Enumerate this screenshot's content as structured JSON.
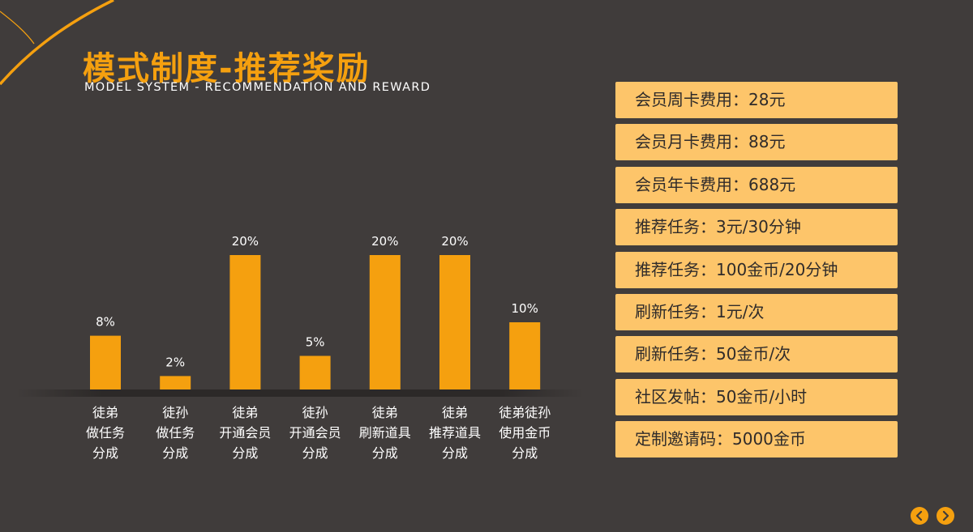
{
  "header": {
    "title": "模式制度-推荐奖励",
    "subtitle": "MODEL SYSTEM - RECOMMENDATION AND REWARD"
  },
  "colors": {
    "background": "#403c3b",
    "accent": "#f5a00f",
    "card": "#fdc56a",
    "card_text": "#2f2b2a"
  },
  "chart_data": {
    "type": "bar",
    "categories": [
      [
        "徒弟",
        "做任务",
        "分成"
      ],
      [
        "徒孙",
        "做任务",
        "分成"
      ],
      [
        "徒弟",
        "开通会员",
        "分成"
      ],
      [
        "徒孙",
        "开通会员",
        "分成"
      ],
      [
        "徒弟",
        "刷新道具",
        "分成"
      ],
      [
        "徒弟",
        "推荐道具",
        "分成"
      ],
      [
        "徒弟徒孙",
        "使用金币",
        "分成"
      ]
    ],
    "values": [
      8,
      2,
      20,
      5,
      20,
      20,
      10
    ],
    "value_labels": [
      "8%",
      "2%",
      "20%",
      "5%",
      "20%",
      "20%",
      "10%"
    ],
    "ylim": [
      0,
      20
    ],
    "color": "#f5a00f",
    "grid": false,
    "legend": "none"
  },
  "cards": [
    "会员周卡费用：28元",
    "会员月卡费用：88元",
    "会员年卡费用：688元",
    "推荐任务：3元/30分钟",
    "推荐任务：100金币/20分钟",
    "刷新任务：1元/次",
    "刷新任务：50金币/次",
    "社区发帖：50金币/小时",
    "定制邀请码：5000金币"
  ],
  "nav": {
    "prev_icon": "chevron-left-icon",
    "next_icon": "chevron-right-icon"
  }
}
